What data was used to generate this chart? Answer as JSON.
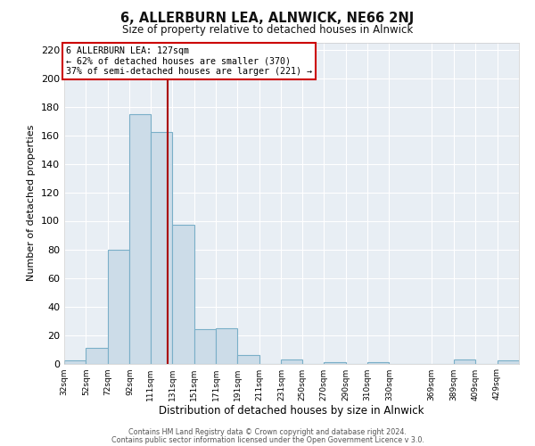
{
  "title": "6, ALLERBURN LEA, ALNWICK, NE66 2NJ",
  "subtitle": "Size of property relative to detached houses in Alnwick",
  "xlabel": "Distribution of detached houses by size in Alnwick",
  "ylabel": "Number of detached properties",
  "bar_left_edges": [
    32,
    52,
    72,
    92,
    111,
    131,
    151,
    171,
    191,
    211,
    231,
    250,
    270,
    290,
    310,
    330,
    369,
    389,
    409,
    429
  ],
  "bar_heights": [
    2,
    11,
    80,
    175,
    162,
    97,
    24,
    25,
    6,
    0,
    3,
    0,
    1,
    0,
    1,
    0,
    0,
    3,
    0,
    2
  ],
  "bar_widths": [
    20,
    20,
    20,
    19,
    20,
    20,
    20,
    20,
    20,
    20,
    19,
    20,
    20,
    20,
    20,
    39,
    20,
    20,
    20,
    20
  ],
  "bar_color": "#ccdce8",
  "bar_edgecolor": "#7aafc8",
  "vline_x": 127,
  "vline_color": "#aa0000",
  "xtick_labels": [
    "32sqm",
    "52sqm",
    "72sqm",
    "92sqm",
    "111sqm",
    "131sqm",
    "151sqm",
    "171sqm",
    "191sqm",
    "211sqm",
    "231sqm",
    "250sqm",
    "270sqm",
    "290sqm",
    "310sqm",
    "330sqm",
    "369sqm",
    "389sqm",
    "409sqm",
    "429sqm"
  ],
  "xtick_positions": [
    32,
    52,
    72,
    92,
    111,
    131,
    151,
    171,
    191,
    211,
    231,
    250,
    270,
    290,
    310,
    330,
    369,
    389,
    409,
    429
  ],
  "ylim": [
    0,
    225
  ],
  "yticks": [
    0,
    20,
    40,
    60,
    80,
    100,
    120,
    140,
    160,
    180,
    200,
    220
  ],
  "xlim_left": 32,
  "xlim_right": 449,
  "annotation_title": "6 ALLERBURN LEA: 127sqm",
  "annotation_line1": "← 62% of detached houses are smaller (370)",
  "annotation_line2": "37% of semi-detached houses are larger (221) →",
  "annotation_box_color": "#ffffff",
  "annotation_box_edgecolor": "#cc0000",
  "bg_color": "#e8eef4",
  "footer1": "Contains HM Land Registry data © Crown copyright and database right 2024.",
  "footer2": "Contains public sector information licensed under the Open Government Licence v 3.0."
}
